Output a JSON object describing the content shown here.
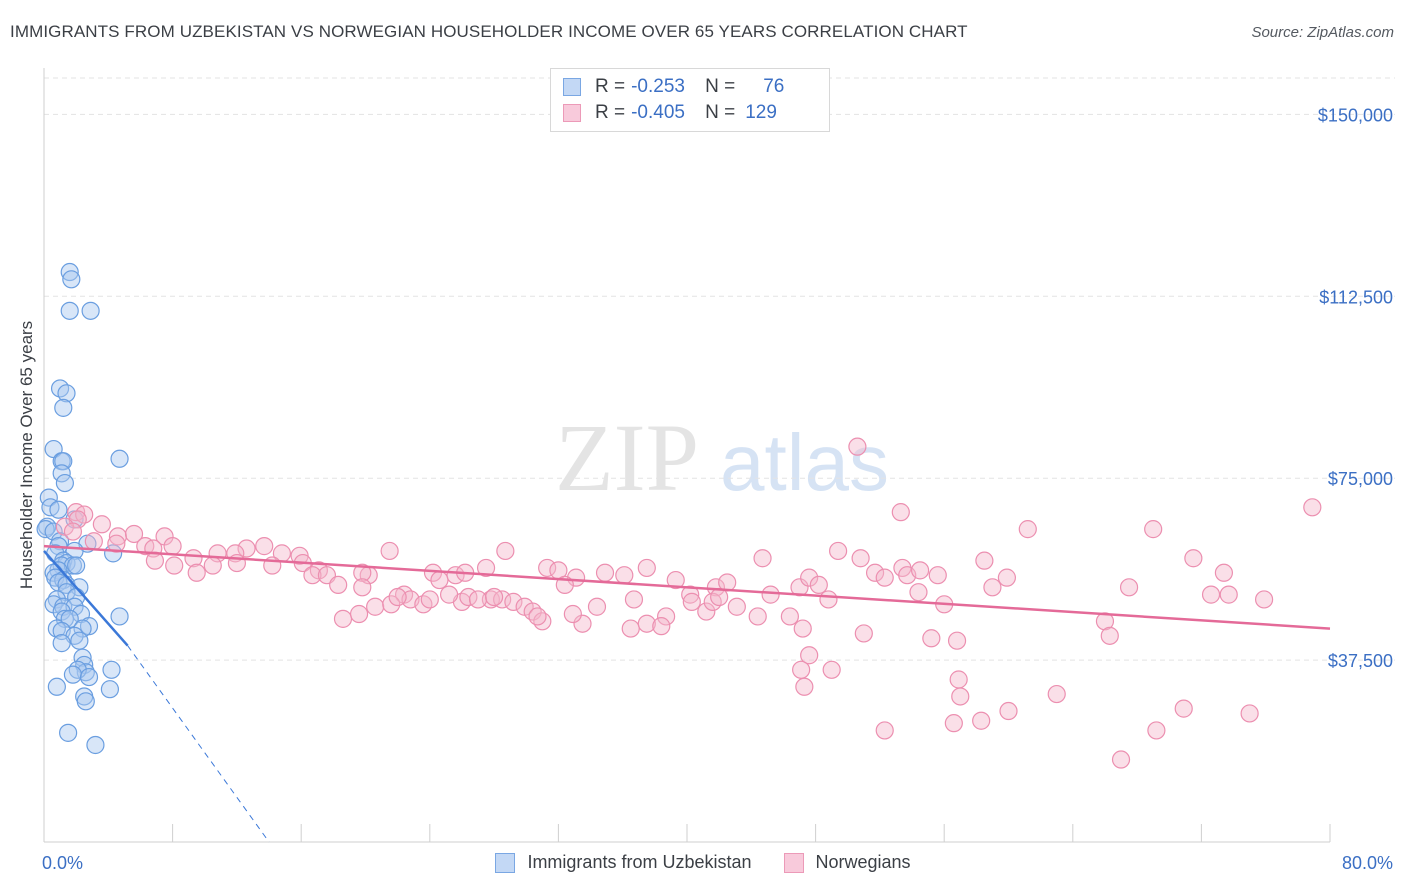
{
  "title": "IMMIGRANTS FROM UZBEKISTAN VS NORWEGIAN HOUSEHOLDER INCOME OVER 65 YEARS CORRELATION CHART",
  "source": "Source: ZipAtlas.com",
  "watermark": {
    "zip": "ZIP",
    "atlas": "atlas"
  },
  "legend": {
    "r_label": "R =",
    "n_label": "N =",
    "rows": [
      {
        "r": "-0.253",
        "n": "76"
      },
      {
        "r": "-0.405",
        "n": "129"
      }
    ]
  },
  "colors": {
    "blue_fill": "#a9c8f0",
    "blue_stroke": "#6a9ee0",
    "blue_line": "#3b78d8",
    "pink_fill": "#f5b7cc",
    "pink_stroke": "#ec8fb0",
    "pink_line": "#e46a98",
    "tick_text": "#3b6fc4",
    "grid": "#e3e3e3"
  },
  "chart_data": {
    "type": "scatter",
    "title": "IMMIGRANTS FROM UZBEKISTAN VS NORWEGIAN HOUSEHOLDER INCOME OVER 65 YEARS CORRELATION CHART",
    "xlabel": "",
    "ylabel": "Householder Income Over 65 years",
    "xlim": [
      0,
      80
    ],
    "ylim": [
      0,
      157500
    ],
    "x_tick_labels": [
      "0.0%",
      "80.0%"
    ],
    "y_ticks": [
      37500,
      75000,
      112500,
      150000
    ],
    "y_tick_labels": [
      "$37,500",
      "$75,000",
      "$112,500",
      "$150,000"
    ],
    "grid": true,
    "legend_position": "top-center",
    "series": [
      {
        "name": "Immigrants from Uzbekistan",
        "points": [
          [
            1.6,
            117500
          ],
          [
            1.7,
            116000
          ],
          [
            1.6,
            109500
          ],
          [
            2.9,
            109500
          ],
          [
            1.0,
            93500
          ],
          [
            1.4,
            92500
          ],
          [
            1.2,
            89500
          ],
          [
            0.6,
            81000
          ],
          [
            1.1,
            78500
          ],
          [
            1.2,
            78500
          ],
          [
            1.1,
            76000
          ],
          [
            4.7,
            79000
          ],
          [
            1.3,
            74000
          ],
          [
            0.3,
            71000
          ],
          [
            0.4,
            69000
          ],
          [
            0.9,
            68500
          ],
          [
            1.9,
            66500
          ],
          [
            0.2,
            65000
          ],
          [
            0.1,
            64500
          ],
          [
            0.6,
            64000
          ],
          [
            1.0,
            62000
          ],
          [
            0.9,
            61000
          ],
          [
            2.7,
            61500
          ],
          [
            0.7,
            59500
          ],
          [
            1.9,
            60000
          ],
          [
            4.3,
            59500
          ],
          [
            1.2,
            58000
          ],
          [
            1.4,
            57500
          ],
          [
            1.1,
            57000
          ],
          [
            1.8,
            57000
          ],
          [
            0.9,
            56000
          ],
          [
            2.0,
            57000
          ],
          [
            0.6,
            55500
          ],
          [
            0.7,
            54500
          ],
          [
            1.2,
            54000
          ],
          [
            0.9,
            53500
          ],
          [
            1.4,
            53000
          ],
          [
            2.2,
            52500
          ],
          [
            1.4,
            51500
          ],
          [
            2.0,
            50500
          ],
          [
            0.8,
            50000
          ],
          [
            0.6,
            49000
          ],
          [
            1.2,
            48500
          ],
          [
            1.9,
            48500
          ],
          [
            1.1,
            47500
          ],
          [
            2.3,
            47000
          ],
          [
            4.7,
            46500
          ],
          [
            1.3,
            46000
          ],
          [
            1.6,
            46000
          ],
          [
            2.8,
            44500
          ],
          [
            0.8,
            44000
          ],
          [
            2.4,
            44000
          ],
          [
            1.1,
            43500
          ],
          [
            1.9,
            42500
          ],
          [
            1.1,
            41000
          ],
          [
            2.2,
            41500
          ],
          [
            2.4,
            38000
          ],
          [
            2.5,
            36500
          ],
          [
            2.6,
            35000
          ],
          [
            2.1,
            35500
          ],
          [
            4.2,
            35500
          ],
          [
            1.8,
            34500
          ],
          [
            2.8,
            34000
          ],
          [
            0.8,
            32000
          ],
          [
            4.1,
            31500
          ],
          [
            2.5,
            30000
          ],
          [
            2.6,
            29000
          ],
          [
            1.5,
            22500
          ],
          [
            3.2,
            20000
          ]
        ]
      },
      {
        "name": "Norwegians",
        "points": [
          [
            2.0,
            68000
          ],
          [
            2.5,
            67500
          ],
          [
            2.1,
            66500
          ],
          [
            3.6,
            65500
          ],
          [
            1.3,
            65000
          ],
          [
            1.8,
            64000
          ],
          [
            4.6,
            63000
          ],
          [
            5.6,
            63500
          ],
          [
            7.5,
            63000
          ],
          [
            6.3,
            61000
          ],
          [
            3.1,
            62000
          ],
          [
            4.5,
            61500
          ],
          [
            8.0,
            61000
          ],
          [
            6.8,
            60500
          ],
          [
            12.6,
            60500
          ],
          [
            13.7,
            61000
          ],
          [
            10.8,
            59500
          ],
          [
            11.9,
            59500
          ],
          [
            14.8,
            59500
          ],
          [
            15.9,
            59000
          ],
          [
            9.3,
            58500
          ],
          [
            6.9,
            58000
          ],
          [
            12.0,
            57500
          ],
          [
            16.1,
            57500
          ],
          [
            10.5,
            57000
          ],
          [
            8.1,
            57000
          ],
          [
            14.2,
            57000
          ],
          [
            17.1,
            56000
          ],
          [
            16.7,
            55000
          ],
          [
            9.5,
            55500
          ],
          [
            21.5,
            60000
          ],
          [
            28.7,
            60000
          ],
          [
            24.2,
            55500
          ],
          [
            20.2,
            55000
          ],
          [
            25.6,
            55000
          ],
          [
            17.6,
            55000
          ],
          [
            19.8,
            55500
          ],
          [
            24.6,
            54000
          ],
          [
            27.5,
            56500
          ],
          [
            26.2,
            55500
          ],
          [
            18.3,
            53000
          ],
          [
            19.8,
            52500
          ],
          [
            22.4,
            51000
          ],
          [
            22.8,
            50000
          ],
          [
            23.6,
            49000
          ],
          [
            24.0,
            50000
          ],
          [
            26.0,
            49500
          ],
          [
            26.4,
            50500
          ],
          [
            27.8,
            50000
          ],
          [
            28.5,
            50000
          ],
          [
            18.6,
            46000
          ],
          [
            19.6,
            47000
          ],
          [
            20.6,
            48500
          ],
          [
            21.6,
            49000
          ],
          [
            22.0,
            50500
          ],
          [
            25.2,
            51000
          ],
          [
            27.0,
            50000
          ],
          [
            28.0,
            50500
          ],
          [
            29.2,
            49500
          ],
          [
            29.9,
            48500
          ],
          [
            31.3,
            56500
          ],
          [
            32.0,
            56000
          ],
          [
            33.1,
            54500
          ],
          [
            34.9,
            55500
          ],
          [
            36.1,
            55000
          ],
          [
            37.5,
            56500
          ],
          [
            32.4,
            53000
          ],
          [
            30.4,
            47500
          ],
          [
            31.0,
            45500
          ],
          [
            33.5,
            45000
          ],
          [
            30.7,
            46500
          ],
          [
            32.9,
            47000
          ],
          [
            34.4,
            48500
          ],
          [
            36.5,
            44000
          ],
          [
            37.5,
            45000
          ],
          [
            38.7,
            46500
          ],
          [
            39.3,
            54000
          ],
          [
            40.2,
            51000
          ],
          [
            41.8,
            52500
          ],
          [
            42.5,
            53500
          ],
          [
            38.4,
            44500
          ],
          [
            36.7,
            50000
          ],
          [
            40.3,
            49500
          ],
          [
            41.2,
            47500
          ],
          [
            41.6,
            49500
          ],
          [
            42.0,
            50500
          ],
          [
            43.1,
            48500
          ],
          [
            44.4,
            46500
          ],
          [
            44.7,
            58500
          ],
          [
            45.2,
            51000
          ],
          [
            46.4,
            46500
          ],
          [
            47.0,
            52500
          ],
          [
            47.6,
            54500
          ],
          [
            48.2,
            53000
          ],
          [
            48.8,
            50000
          ],
          [
            47.2,
            44000
          ],
          [
            47.6,
            38500
          ],
          [
            47.1,
            35500
          ],
          [
            49.0,
            35500
          ],
          [
            47.3,
            32000
          ],
          [
            49.4,
            60000
          ],
          [
            50.8,
            58500
          ],
          [
            51.7,
            55500
          ],
          [
            52.3,
            54500
          ],
          [
            53.4,
            56500
          ],
          [
            53.7,
            55000
          ],
          [
            54.5,
            56000
          ],
          [
            55.6,
            55000
          ],
          [
            53.3,
            68000
          ],
          [
            50.6,
            81500
          ],
          [
            51.0,
            43000
          ],
          [
            54.4,
            51500
          ],
          [
            56.0,
            49000
          ],
          [
            55.2,
            42000
          ],
          [
            56.8,
            41500
          ],
          [
            56.9,
            33500
          ],
          [
            57.0,
            30000
          ],
          [
            58.5,
            58000
          ],
          [
            59.0,
            52500
          ],
          [
            59.9,
            54500
          ],
          [
            60.0,
            27000
          ],
          [
            61.2,
            64500
          ],
          [
            63.0,
            30500
          ],
          [
            66.0,
            45500
          ],
          [
            66.3,
            42500
          ],
          [
            67.5,
            52500
          ],
          [
            69.0,
            64500
          ],
          [
            70.9,
            27500
          ],
          [
            71.5,
            58500
          ],
          [
            72.6,
            51000
          ],
          [
            73.4,
            55500
          ],
          [
            73.7,
            51000
          ],
          [
            75.0,
            26500
          ],
          [
            75.9,
            50000
          ],
          [
            67.0,
            17000
          ],
          [
            69.2,
            23000
          ],
          [
            56.6,
            24500
          ],
          [
            78.9,
            69000
          ],
          [
            58.3,
            25000
          ],
          [
            52.3,
            23000
          ]
        ]
      }
    ],
    "trend_lines": [
      {
        "series": "Immigrants from Uzbekistan",
        "solid": [
          [
            0,
            60000
          ],
          [
            5.2,
            40500
          ]
        ],
        "dashed": [
          [
            5.2,
            40500
          ],
          [
            14.0,
            0
          ]
        ]
      },
      {
        "series": "Norwegians",
        "solid": [
          [
            0,
            61000
          ],
          [
            80,
            44000
          ]
        ]
      }
    ]
  },
  "bottom_legend": [
    "Immigrants from Uzbekistan",
    "Norwegians"
  ]
}
